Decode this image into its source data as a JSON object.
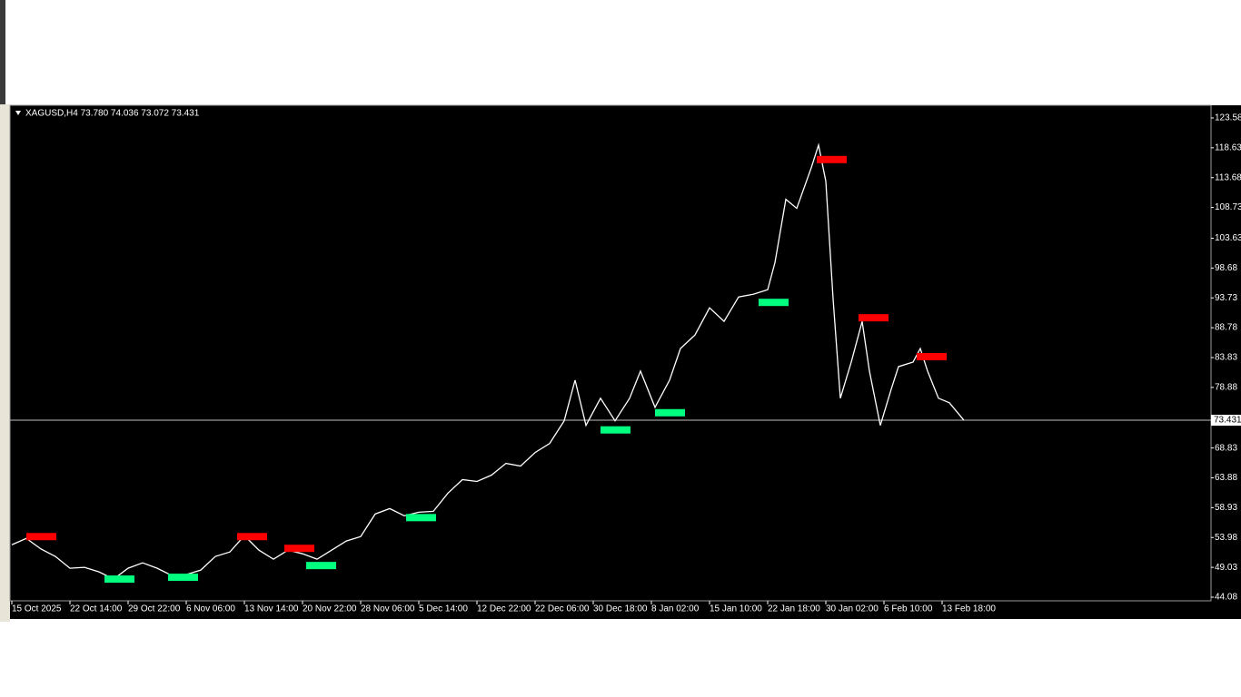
{
  "chart_data": {
    "type": "line",
    "title": "XAGUSD,H4  73.780 74.036 73.072 73.431",
    "x": [
      0,
      8,
      16,
      24,
      32,
      40,
      48,
      56,
      64,
      72,
      80,
      88,
      96,
      104,
      112,
      120,
      128,
      136,
      144,
      152,
      160,
      168,
      176,
      184,
      192,
      200,
      208,
      216,
      224,
      232,
      240,
      248,
      256,
      264,
      272,
      280,
      288,
      296,
      304,
      310,
      316,
      324,
      332,
      340,
      346,
      354,
      362,
      368,
      376,
      384,
      392,
      400,
      408,
      416,
      420,
      426,
      432,
      440,
      444,
      448,
      452,
      456,
      462,
      468,
      472,
      478,
      484,
      488,
      496,
      500,
      504,
      510,
      516,
      524
    ],
    "series": [
      {
        "color": "#ffffff",
        "values": [
          52.78,
          53.83,
          52.08,
          50.83,
          48.88,
          49.03,
          48.28,
          47.08,
          48.88,
          49.78,
          48.88,
          47.68,
          47.83,
          48.58,
          50.83,
          51.58,
          54.28,
          51.88,
          50.38,
          51.88,
          51.28,
          50.38,
          51.88,
          53.38,
          54.13,
          57.88,
          58.78,
          57.58,
          58.18,
          58.33,
          61.33,
          63.58,
          63.28,
          64.33,
          66.28,
          65.83,
          68.08,
          69.58,
          73.33,
          80.08,
          72.58,
          77.08,
          73.33,
          77.08,
          81.58,
          75.58,
          80.08,
          85.33,
          87.58,
          92.08,
          89.83,
          93.88,
          94.33,
          95.08,
          99.58,
          110.08,
          108.58,
          115.33,
          119.08,
          113.08,
          93.58,
          77.08,
          83.08,
          89.83,
          81.58,
          72.58,
          78.58,
          82.33,
          83.08,
          85.33,
          81.58,
          77.08,
          76.33,
          73.43
        ]
      }
    ],
    "signals": [
      {
        "x": 8,
        "y": 54.13,
        "color": "#ff0000"
      },
      {
        "x": 51,
        "y": 47.08,
        "color": "#00ff7f"
      },
      {
        "x": 86,
        "y": 47.38,
        "color": "#00ff7f"
      },
      {
        "x": 124,
        "y": 54.13,
        "color": "#ff0000"
      },
      {
        "x": 150,
        "y": 52.18,
        "color": "#ff0000"
      },
      {
        "x": 162,
        "y": 49.33,
        "color": "#00ff7f"
      },
      {
        "x": 217,
        "y": 57.28,
        "color": "#00ff7f"
      },
      {
        "x": 324,
        "y": 71.83,
        "color": "#00ff7f"
      },
      {
        "x": 354,
        "y": 74.68,
        "color": "#00ff7f"
      },
      {
        "x": 411,
        "y": 92.98,
        "color": "#00ff7f"
      },
      {
        "x": 443,
        "y": 116.68,
        "color": "#ff0000"
      },
      {
        "x": 466,
        "y": 90.43,
        "color": "#ff0000"
      },
      {
        "x": 498,
        "y": 83.98,
        "color": "#ff0000"
      }
    ],
    "current_price": 73.431,
    "xlim": [
      0,
      658
    ],
    "xticks": [
      {
        "value": 0,
        "label": "15 Oct 2025"
      },
      {
        "value": 32,
        "label": "22 Oct 14:00"
      },
      {
        "value": 64,
        "label": "29 Oct 22:00"
      },
      {
        "value": 96,
        "label": "6 Nov 06:00"
      },
      {
        "value": 128,
        "label": "13 Nov 14:00"
      },
      {
        "value": 160,
        "label": "20 Nov 22:00"
      },
      {
        "value": 192,
        "label": "28 Nov 06:00"
      },
      {
        "value": 224,
        "label": "5 Dec 14:00"
      },
      {
        "value": 256,
        "label": "12 Dec 22:00"
      },
      {
        "value": 288,
        "label": "22 Dec 06:00"
      },
      {
        "value": 320,
        "label": "30 Dec 18:00"
      },
      {
        "value": 352,
        "label": "8 Jan 02:00"
      },
      {
        "value": 384,
        "label": "15 Jan 10:00"
      },
      {
        "value": 416,
        "label": "22 Jan 18:00"
      },
      {
        "value": 448,
        "label": "30 Jan 02:00"
      },
      {
        "value": 480,
        "label": "6 Feb 10:00"
      },
      {
        "value": 512,
        "label": "13 Feb 18:00"
      }
    ],
    "ylim": [
      43.78,
      125.38
    ],
    "yticks": [
      123.58,
      118.63,
      113.68,
      108.73,
      103.63,
      98.68,
      93.73,
      88.78,
      83.83,
      78.88,
      68.83,
      63.88,
      58.93,
      53.98,
      49.03,
      44.08
    ]
  }
}
